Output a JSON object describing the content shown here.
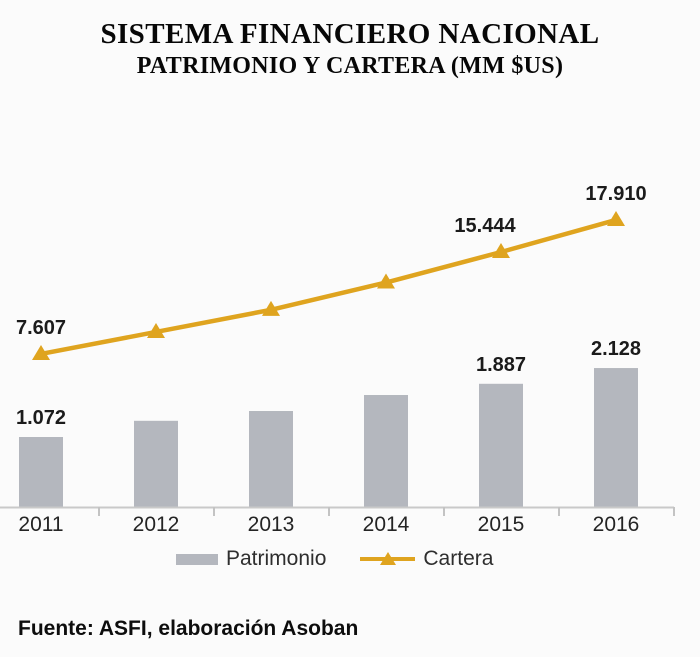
{
  "title": {
    "line1": "SISTEMA FINANCIERO NACIONAL",
    "line2": "PATRIMONIO Y CARTERA (MM $US)"
  },
  "legend": {
    "patrimonio_label": "Patrimonio",
    "cartera_label": "Cartera"
  },
  "footer": {
    "source": "Fuente: ASFI, elaboración Asoban"
  },
  "colors": {
    "bar": "#b4b7be",
    "line": "#dfa41f",
    "axis": "#c9c9c9",
    "tick": "#c3c3c3",
    "data_label": "#1b1b1b",
    "background": "#fbfbfb"
  },
  "chart_data": {
    "type": "bar+line",
    "title": "SISTEMA FINANCIERO NACIONAL — PATRIMONIO Y CARTERA (MM $US)",
    "categories": [
      "2011",
      "2012",
      "2013",
      "2014",
      "2015",
      "2016"
    ],
    "series": [
      {
        "name": "Patrimonio",
        "type": "bar",
        "color": "#b4b7be",
        "values": [
          1072,
          1320,
          1470,
          1715,
          1887,
          2128
        ],
        "labels": [
          "1.072",
          null,
          null,
          null,
          "1.887",
          "2.128"
        ]
      },
      {
        "name": "Cartera",
        "type": "line",
        "color": "#dfa41f",
        "marker": "triangle-up",
        "values": [
          7607,
          9300,
          11000,
          13100,
          15444,
          17910
        ],
        "labels": [
          "7.607",
          null,
          null,
          null,
          "15.444",
          "17.910"
        ]
      }
    ],
    "xlabel": "",
    "ylabel": "",
    "y_axis_visible": false,
    "gridlines": false,
    "legend_position": "bottom",
    "bar_axis_range": [
      0,
      3100
    ],
    "line_axis_range": [
      0,
      27000
    ]
  }
}
